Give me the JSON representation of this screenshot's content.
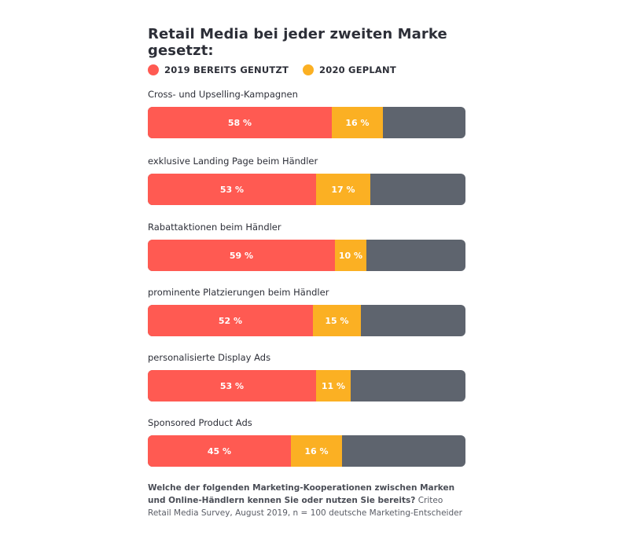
{
  "chart_data": {
    "type": "bar",
    "stacked": true,
    "orientation": "horizontal",
    "title": "Retail Media bei jeder zweiten Marke gesetzt:",
    "categories": [
      "Cross- und Upselling-Kampagnen",
      "exklusive Landing Page beim Händler",
      "Rabattaktionen beim Händler",
      "prominente Platzierungen beim Händler",
      "personalisierte Display Ads",
      "Sponsored Product Ads"
    ],
    "series": [
      {
        "name": "2019 BEREITS GENUTZT",
        "color": "#ff5a52",
        "values": [
          58,
          53,
          59,
          52,
          53,
          45
        ]
      },
      {
        "name": "2020 GEPLANT",
        "color": "#fbb023",
        "values": [
          16,
          17,
          10,
          15,
          11,
          16
        ]
      }
    ],
    "value_labels": [
      [
        "58 %",
        "53 %",
        "59 %",
        "52 %",
        "53 %",
        "45 %"
      ],
      [
        "16 %",
        "17 %",
        "10 %",
        "15 %",
        "11 %",
        "16 %"
      ]
    ],
    "xlim": [
      0,
      100
    ],
    "remainder_color": "#5e646e",
    "legend": "top-left",
    "grid": false
  },
  "footnote": {
    "bold": "Welche der folgenden Marketing-Kooperationen zwischen Marken und Online-Händlern kennen Sie oder nutzen Sie bereits?",
    "regular": " Criteo Retail Media Survey, August 2019, n = 100 deutsche Marketing-Entscheider"
  }
}
